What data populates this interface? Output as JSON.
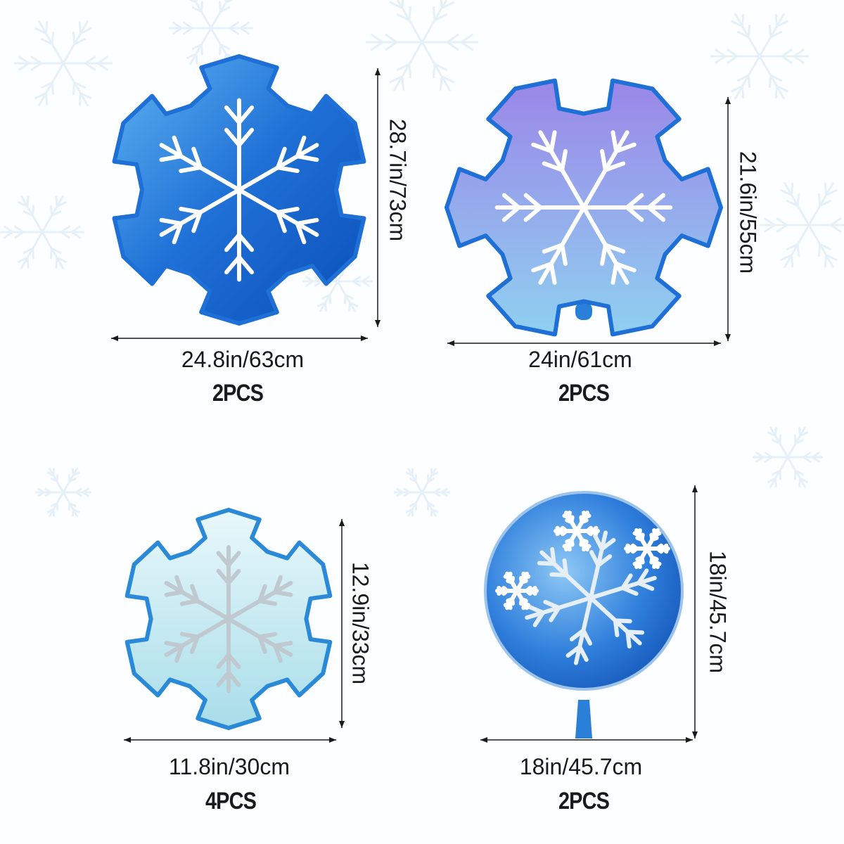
{
  "colors": {
    "text": "#1a1a1a",
    "blue": "#1e6fd6",
    "purple": "#7a5ad8",
    "light_blue": "#bfe6f2",
    "pink": "#e0338c"
  },
  "products": [
    {
      "name": "blue-snowflake-balloon",
      "width": "24.8in/63cm",
      "height": "28.7in/73cm",
      "quantity": "2PCS"
    },
    {
      "name": "purple-snowflake-balloon",
      "width": "24in/61cm",
      "height": "21.6in/55cm",
      "quantity": "2PCS"
    },
    {
      "name": "small-snowflake-balloon",
      "width": "11.8in/30cm",
      "height": "12.9in/33cm",
      "quantity": "4PCS"
    },
    {
      "name": "round-snowflake-balloon",
      "width": "18in/45.7cm",
      "height": "18in/45.7cm",
      "quantity": "2PCS"
    }
  ]
}
